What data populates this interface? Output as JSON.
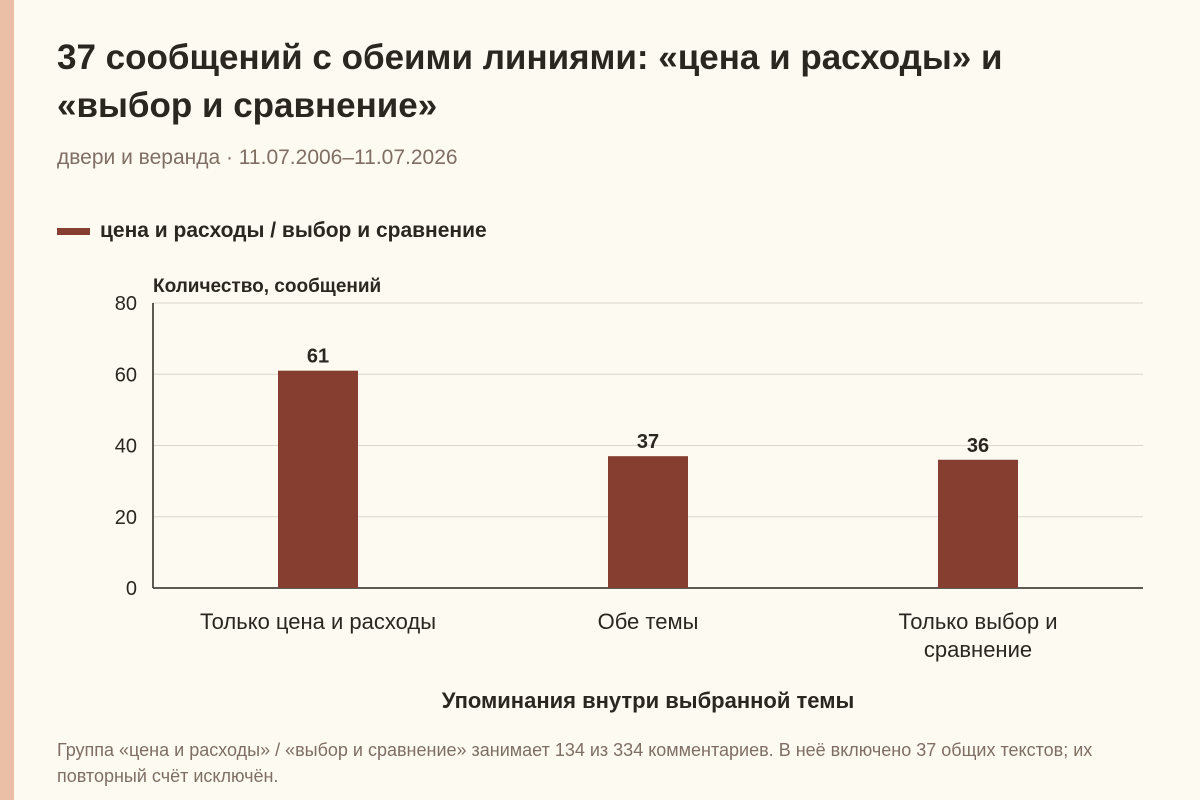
{
  "header": {
    "title": "37 сообщений с обеими линиями: «цена и расходы» и «выбор и сравнение»",
    "subtitle": "двери и веранда · 11.07.2006–11.07.2026"
  },
  "legend": {
    "label": "цена и расходы / выбор и сравнение"
  },
  "colors": {
    "bar": "#853e2f",
    "grid": "#dcd6cc",
    "axis": "#2a2620",
    "background": "#fdfaf2",
    "accent": "#eabfa6"
  },
  "chart_data": {
    "type": "bar",
    "categories": [
      "Только цена и расходы",
      "Обе темы",
      "Только выбор и сравнение"
    ],
    "series": [
      {
        "name": "цена и расходы / выбор и сравнение",
        "values": [
          61,
          37,
          36
        ]
      }
    ],
    "ylabel": "Количество, сообщений",
    "xlabel": "Упоминания внутри выбранной темы",
    "ylim": [
      0,
      80
    ],
    "yticks": [
      0,
      20,
      40,
      60,
      80
    ],
    "grid": true,
    "data_labels": true,
    "legend_position": "top-left"
  },
  "caption": "Группа «цена и расходы» / «выбор и сравнение» занимает 134 из 334 комментариев. В неё включено 37 общих текстов; их повторный счёт исключён."
}
